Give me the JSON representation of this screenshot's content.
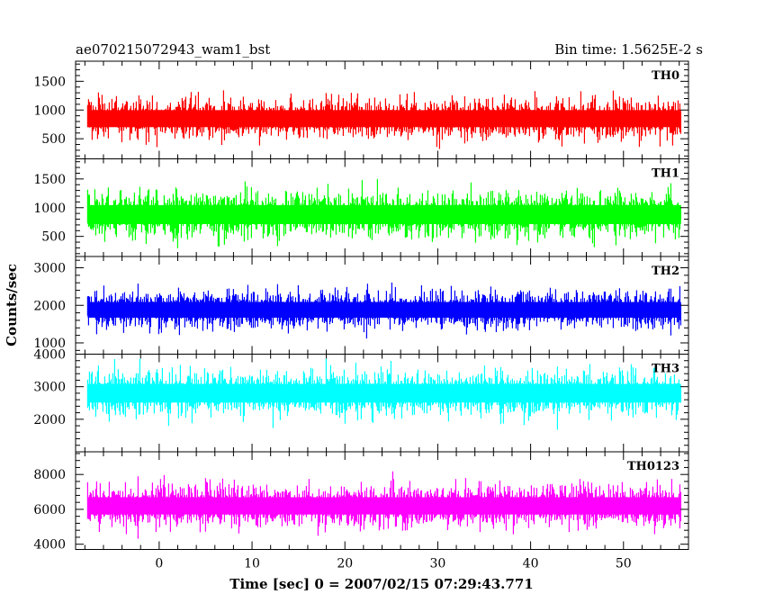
{
  "header": {
    "left": "ae070215072943_wam1_bst",
    "right": "Bin time: 1.5625E-2 s"
  },
  "chart_data": {
    "type": "line",
    "xlabel": "Time [sec] 0 = 2007/02/15 07:29:43.771",
    "ylabel": "Counts/sec",
    "xlim": [
      -9,
      57
    ],
    "x_start": -7.7,
    "x_end": 56.2,
    "xticks": [
      0,
      10,
      20,
      30,
      40,
      50
    ],
    "xtick_labels": [
      "0",
      "10",
      "20",
      "30",
      "40",
      "50"
    ],
    "grid": false,
    "panels": [
      {
        "name": "TH0",
        "color": "#ff0000",
        "ylim": [
          150,
          1850
        ],
        "yticks": [
          500,
          1000,
          1500
        ],
        "ytick_labels": [
          "500",
          "1000",
          "1500"
        ],
        "mean": 850,
        "spread": 270
      },
      {
        "name": "TH1",
        "color": "#00ff00",
        "ylim": [
          150,
          1850
        ],
        "yticks": [
          500,
          1000,
          1500
        ],
        "ytick_labels": [
          "500",
          "1000",
          "1500"
        ],
        "mean": 880,
        "spread": 300
      },
      {
        "name": "TH2",
        "color": "#0000ff",
        "ylim": [
          700,
          3300
        ],
        "yticks": [
          1000,
          2000,
          3000
        ],
        "ytick_labels": [
          "1000",
          "2000",
          "3000"
        ],
        "mean": 1880,
        "spread": 380
      },
      {
        "name": "TH3",
        "color": "#00ffff",
        "ylim": [
          1000,
          4000
        ],
        "yticks": [
          2000,
          3000,
          4000
        ],
        "ytick_labels": [
          "2000",
          "3000",
          "4000"
        ],
        "mean": 2800,
        "spread": 520
      },
      {
        "name": "TH0123",
        "color": "#ff00ff",
        "ylim": [
          3700,
          9300
        ],
        "yticks": [
          4000,
          6000,
          8000
        ],
        "ytick_labels": [
          "4000",
          "6000",
          "8000"
        ],
        "mean": 6200,
        "spread": 900
      }
    ]
  }
}
